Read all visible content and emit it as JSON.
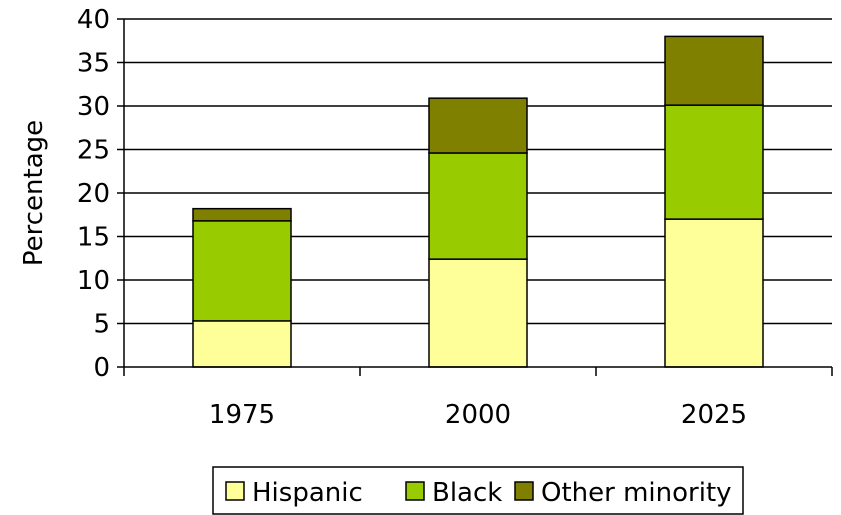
{
  "chart_data": {
    "type": "bar",
    "stacked": true,
    "title": "",
    "xlabel": "",
    "ylabel": "Percentage",
    "ylim": [
      0,
      40
    ],
    "yticks": [
      0,
      5,
      10,
      15,
      20,
      25,
      30,
      35,
      40
    ],
    "grid": "horizontal",
    "legend_position": "bottom",
    "categories": [
      "1975",
      "2000",
      "2025"
    ],
    "series": [
      {
        "name": "Hispanic",
        "color": "#ffff99",
        "values": [
          5.3,
          12.4,
          17.0
        ]
      },
      {
        "name": "Black",
        "color": "#99cc00",
        "values": [
          11.5,
          12.2,
          13.1
        ]
      },
      {
        "name": "Other minority",
        "color": "#808000",
        "values": [
          1.4,
          6.3,
          7.9
        ]
      }
    ]
  }
}
